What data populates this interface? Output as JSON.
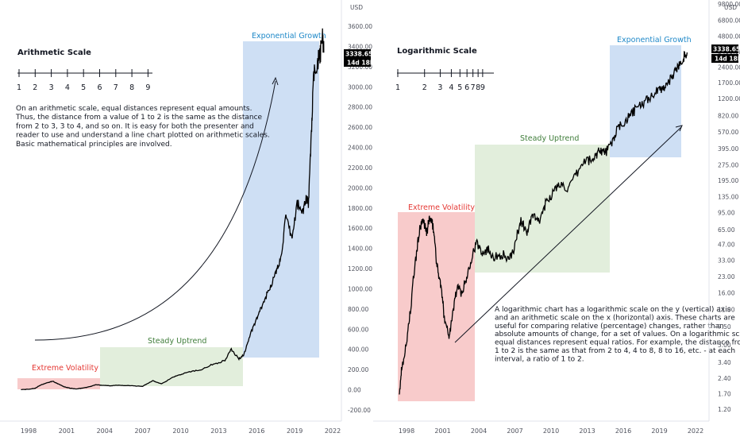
{
  "colors": {
    "red_zone": "#f7c5c5",
    "green_zone": "#dfecd8",
    "blue_zone": "#c9dbf3",
    "red_text": "#e53935",
    "green_text": "#3f7d3a",
    "blue_text": "#1e88c8",
    "line": "#000000",
    "axis_text": "#50535e",
    "price_badge": "#000000"
  },
  "left": {
    "title": "Arithmetic Scale",
    "scale_numbers": [
      "1",
      "2",
      "3",
      "4",
      "5",
      "6",
      "7",
      "8",
      "9"
    ],
    "paragraph": [
      "On an arithmetic scale, equal distances represent equal amounts.",
      "Thus, the distance from a value of 1 to 2 is the same as the distance",
      "from 2 to 3, 3 to 4, and so on. It is easy for both the presenter and",
      "reader to use and understand a line chart plotted on arithmetic scales.",
      "Basic mathematical principles are involved."
    ],
    "zones": {
      "red": "Extreme Volatility",
      "green": "Steady Uptrend",
      "blue": "Exponential Growth"
    },
    "price_badge": "3338.65",
    "time_badge": "14d 18h",
    "currency_label": "USD"
  },
  "right": {
    "title": "Logarithmic Scale",
    "scale_numbers": [
      "1",
      "2",
      "3",
      "4",
      "5",
      "6",
      "7",
      "8",
      "9"
    ],
    "paragraph": [
      "A logarithmic chart has a logarithmic scale on the y (vertical) axis",
      "and an arithmetic scale on the x (horizontal) axis. These charts are",
      "useful for comparing relative (percentage) changes, rather than",
      "absolute amounts of change, for a set of values. On a logarithmic scale,",
      "equal distances represent equal ratios. For example, the distance from",
      "1 to 2 is the same as that from 2 to 4, 4 to 8, 8 to 16, etc. - at each",
      "interval, a ratio of 1 to 2."
    ],
    "zones": {
      "red": "Extreme Volatility",
      "green": "Steady Uptrend",
      "blue": "Exponential Growth"
    },
    "price_badge": "3338.65",
    "time_badge": "14d 18h",
    "currency_label": "USD"
  },
  "chart_data": [
    {
      "type": "line",
      "scale": "linear",
      "x_ticks": [
        "1998",
        "2001",
        "2004",
        "2007",
        "2010",
        "2013",
        "2016",
        "2019",
        "2022"
      ],
      "y_ticks": [
        "-200.00",
        "0.00",
        "200.00",
        "400.00",
        "600.00",
        "800.00",
        "1000.00",
        "1200.00",
        "1400.00",
        "1600.00",
        "1800.00",
        "2000.00",
        "2200.00",
        "2400.00",
        "2600.00",
        "2800.00",
        "3000.00",
        "3200.00",
        "3400.00",
        "3600.00"
      ],
      "ylim": [
        -200,
        3600
      ],
      "series": [
        {
          "x": [
            1997.4,
            1998.0,
            1998.5,
            1999.0,
            1999.5,
            1999.9,
            2000.3,
            2000.8,
            2001.3,
            2001.8,
            2002.3,
            2002.8,
            2003.3,
            2003.8,
            2004.5,
            2005.0,
            2006.0,
            2007.0,
            2007.8,
            2008.5,
            2009.5,
            2010.5,
            2011.5,
            2012.5,
            2013.5,
            2014.0,
            2014.6,
            2015.0,
            2015.5,
            2016.0,
            2016.5,
            2017.0,
            2017.5,
            2017.9,
            2018.3,
            2018.8,
            2019.2,
            2019.6,
            2019.9,
            2020.1,
            2020.3,
            2020.5,
            2020.8,
            2021.0,
            2021.2,
            2021.3
          ],
          "values": [
            2,
            5,
            15,
            50,
            70,
            85,
            60,
            30,
            15,
            8,
            18,
            30,
            50,
            45,
            40,
            45,
            40,
            35,
            90,
            60,
            130,
            175,
            195,
            250,
            290,
            400,
            305,
            350,
            550,
            700,
            850,
            1000,
            1150,
            1300,
            1700,
            1500,
            1850,
            1750,
            1900,
            1850,
            2500,
            3100,
            3250,
            3300,
            3500,
            3338.65
          ]
        }
      ]
    },
    {
      "type": "line",
      "scale": "log",
      "x_ticks": [
        "1998",
        "2001",
        "2004",
        "2007",
        "2010",
        "2013",
        "2016",
        "2019",
        "2022"
      ],
      "y_ticks": [
        "1.20",
        "1.70",
        "2.40",
        "3.40",
        "5.00",
        "7.50",
        "11.00",
        "16.00",
        "23.00",
        "33.00",
        "47.00",
        "65.00",
        "95.00",
        "135.00",
        "195.00",
        "275.00",
        "395.00",
        "570.00",
        "820.00",
        "1200.00",
        "1700.00",
        "2400.00",
        "3400.00",
        "4800.00",
        "6800.00",
        "9800.00"
      ],
      "ylim": [
        1.0,
        11000
      ],
      "series": [
        {
          "x": [
            1997.4,
            1997.6,
            1998.0,
            1998.4,
            1998.8,
            1999.1,
            1999.4,
            1999.7,
            1999.9,
            2000.2,
            2000.5,
            2000.8,
            2001.1,
            2001.5,
            2001.8,
            2002.2,
            2002.6,
            2003.0,
            2003.4,
            2003.8,
            2004.3,
            2004.8,
            2005.3,
            2006.0,
            2006.5,
            2007.0,
            2007.5,
            2008.0,
            2008.5,
            2009.0,
            2009.6,
            2010.2,
            2010.8,
            2011.5,
            2012.2,
            2012.9,
            2013.5,
            2014.0,
            2014.5,
            2015.0,
            2015.5,
            2016.0,
            2016.6,
            2017.2,
            2017.8,
            2018.4,
            2019.0,
            2019.5,
            2020.0,
            2020.5,
            2021.0,
            2021.3
          ],
          "values": [
            1.5,
            3,
            5,
            12,
            35,
            65,
            80,
            60,
            85,
            70,
            30,
            20,
            10,
            6,
            9,
            18,
            16,
            22,
            35,
            48,
            40,
            42,
            35,
            38,
            32,
            45,
            80,
            60,
            90,
            75,
            120,
            150,
            180,
            160,
            230,
            310,
            300,
            390,
            360,
            430,
            600,
            700,
            820,
            1000,
            1100,
            1300,
            1450,
            1600,
            1900,
            2400,
            3000,
            3338.65
          ]
        }
      ]
    }
  ]
}
